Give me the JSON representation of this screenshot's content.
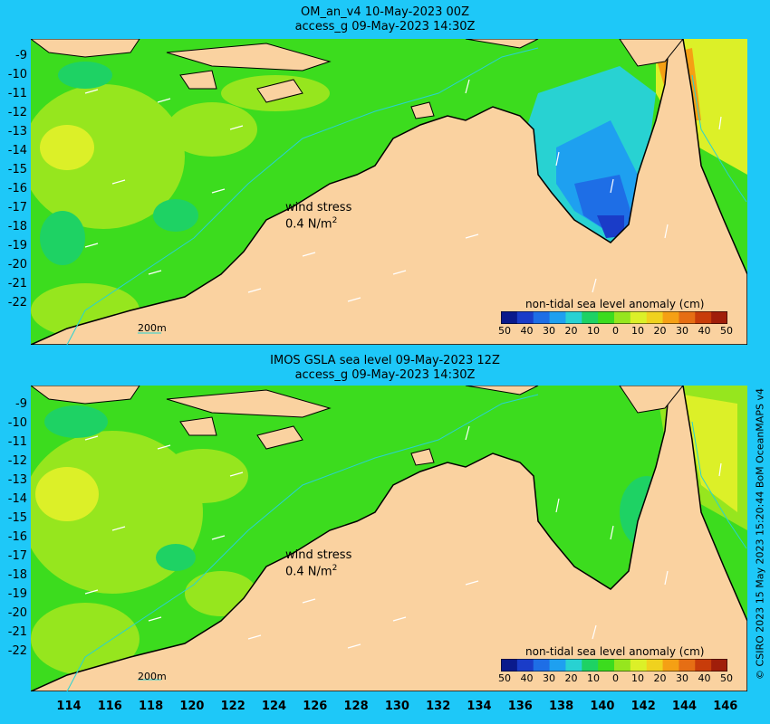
{
  "panels": [
    {
      "title_line1": "OM_an_v4  10-May-2023 00Z",
      "title_line2": "access_g 09-May-2023 14:30Z"
    },
    {
      "title_line1": "IMOS GSLA sea level  09-May-2023 12Z",
      "title_line2": "access_g 09-May-2023 14:30Z"
    }
  ],
  "wind_stress": {
    "label": "wind stress",
    "value": "0.4 N/m",
    "exp": "2"
  },
  "colorbar": {
    "title": "non-tidal sea level anomaly (cm)",
    "labels": [
      "50",
      "40",
      "30",
      "20",
      "10",
      "0",
      "10",
      "20",
      "30",
      "40",
      "50"
    ],
    "colors": [
      "#0a1a8c",
      "#1a3cc8",
      "#1e6ee6",
      "#1ea0f0",
      "#28d2d2",
      "#1ed264",
      "#3cdc1e",
      "#96e61e",
      "#dcf028",
      "#f0d21e",
      "#f5a014",
      "#e66e14",
      "#c83c0a",
      "#a01e0a"
    ]
  },
  "scale_label": "200m",
  "y_ticks": [
    "-9",
    "-10",
    "-11",
    "-12",
    "-13",
    "-14",
    "-15",
    "-16",
    "-17",
    "-18",
    "-19",
    "-20",
    "-21",
    "-22"
  ],
  "x_ticks": [
    "114",
    "116",
    "118",
    "120",
    "122",
    "124",
    "126",
    "128",
    "130",
    "132",
    "134",
    "136",
    "138",
    "140",
    "142",
    "144",
    "146"
  ],
  "credit": "© CSIRO 2023   15 May 2023 15:20:44 BoM OceanMAPS v4",
  "colors": {
    "land": "#fad2a0",
    "ocean_background": "#1ec8f8",
    "sea_base": "#3cdc1e",
    "coastline": "#000000"
  }
}
